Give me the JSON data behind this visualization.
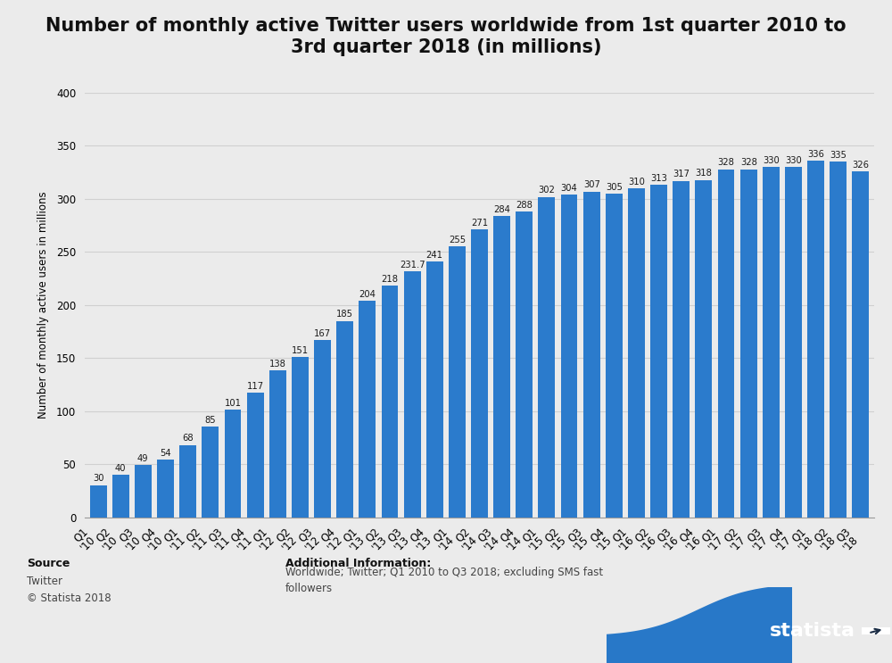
{
  "title_line1": "Number of monthly active Twitter users worldwide from 1st quarter 2010 to",
  "title_line2": "3rd quarter 2018 (in millions)",
  "ylabel": "Number of monthly active users in millions",
  "categories": [
    "Q1 '10",
    "Q2 '10",
    "Q3 '10",
    "Q4 '10",
    "Q1 '11",
    "Q2 '11",
    "Q3 '11",
    "Q4 '11",
    "Q1 '12",
    "Q2 '12",
    "Q3 '12",
    "Q4 '12",
    "Q1 '13",
    "Q2 '13",
    "Q3 '13",
    "Q4 '13",
    "Q1 '14",
    "Q2 '14",
    "Q3 '14",
    "Q4 '14",
    "Q1 '15",
    "Q2 '15",
    "Q3 '15",
    "Q4 '15",
    "Q1 '16",
    "Q2 '16",
    "Q3 '16",
    "Q4 '16",
    "Q1 '17",
    "Q2 '17",
    "Q3 '17",
    "Q4 '17",
    "Q1 '18",
    "Q2 '18",
    "Q3 '18"
  ],
  "values": [
    30,
    40,
    49,
    54,
    68,
    85,
    101,
    117,
    138,
    151,
    167,
    185,
    204,
    218,
    231.7,
    241,
    255,
    271,
    284,
    288,
    302,
    304,
    307,
    305,
    310,
    313,
    317,
    318,
    328,
    328,
    330,
    330,
    336,
    335,
    326
  ],
  "bar_color": "#2b7bcc",
  "bg_color": "#ebebeb",
  "plot_bg_color": "#ebebeb",
  "grid_color": "#d0d0d0",
  "ylim": [
    0,
    400
  ],
  "yticks": [
    0,
    50,
    100,
    150,
    200,
    250,
    300,
    350,
    400
  ],
  "title_fontsize": 15,
  "label_fontsize": 8.5,
  "bar_label_fontsize": 7.2,
  "ylabel_fontsize": 8.5,
  "footer_dark_bg": "#1b2d45",
  "footer_blue_wave": "#2878c8",
  "statista_text_color": "#ffffff"
}
